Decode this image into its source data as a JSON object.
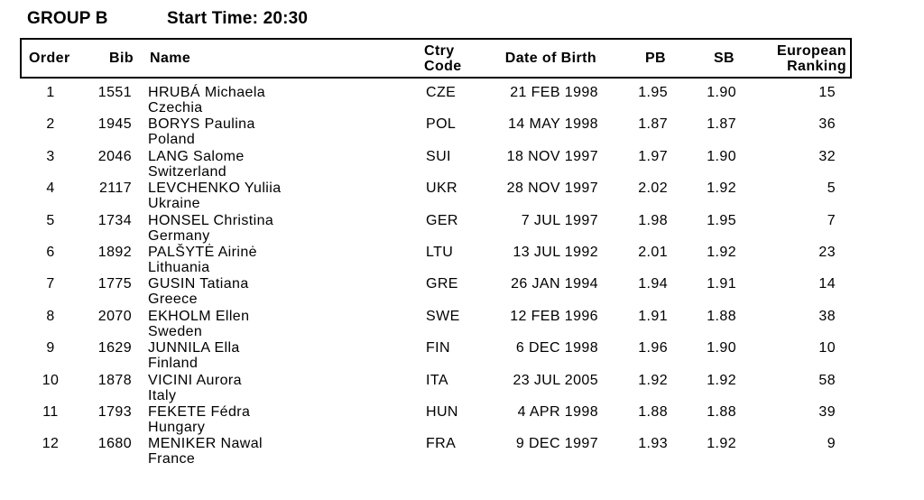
{
  "header": {
    "group_label": "GROUP B",
    "start_time_label": "Start Time: 20:30"
  },
  "colors": {
    "text": "#000000",
    "background": "#ffffff",
    "table_border": "#000000"
  },
  "table": {
    "columns": {
      "order": "Order",
      "bib": "Bib",
      "name": "Name",
      "ctry_line1": "Ctry",
      "ctry_line2": "Code",
      "dob": "Date of Birth",
      "pb": "PB",
      "sb": "SB",
      "rank_line1": "European",
      "rank_line2": "Ranking"
    },
    "rows": [
      {
        "order": "1",
        "bib": "1551",
        "name": "HRUBÁ Michaela",
        "country": "Czechia",
        "ctry": "CZE",
        "dob": "21 FEB 1998",
        "pb": "1.95",
        "sb": "1.90",
        "rank": "15"
      },
      {
        "order": "2",
        "bib": "1945",
        "name": "BORYS Paulina",
        "country": "Poland",
        "ctry": "POL",
        "dob": "14 MAY 1998",
        "pb": "1.87",
        "sb": "1.87",
        "rank": "36"
      },
      {
        "order": "3",
        "bib": "2046",
        "name": "LANG Salome",
        "country": "Switzerland",
        "ctry": "SUI",
        "dob": "18 NOV 1997",
        "pb": "1.97",
        "sb": "1.90",
        "rank": "32"
      },
      {
        "order": "4",
        "bib": "2117",
        "name": "LEVCHENKO Yuliia",
        "country": "Ukraine",
        "ctry": "UKR",
        "dob": "28 NOV 1997",
        "pb": "2.02",
        "sb": "1.92",
        "rank": "5"
      },
      {
        "order": "5",
        "bib": "1734",
        "name": "HONSEL Christina",
        "country": "Germany",
        "ctry": "GER",
        "dob": "7 JUL 1997",
        "pb": "1.98",
        "sb": "1.95",
        "rank": "7"
      },
      {
        "order": "6",
        "bib": "1892",
        "name": "PALŠYTĖ Airinė",
        "country": "Lithuania",
        "ctry": "LTU",
        "dob": "13 JUL 1992",
        "pb": "2.01",
        "sb": "1.92",
        "rank": "23"
      },
      {
        "order": "7",
        "bib": "1775",
        "name": "GUSIN Tatiana",
        "country": "Greece",
        "ctry": "GRE",
        "dob": "26 JAN 1994",
        "pb": "1.94",
        "sb": "1.91",
        "rank": "14"
      },
      {
        "order": "8",
        "bib": "2070",
        "name": "EKHOLM Ellen",
        "country": "Sweden",
        "ctry": "SWE",
        "dob": "12 FEB 1996",
        "pb": "1.91",
        "sb": "1.88",
        "rank": "38"
      },
      {
        "order": "9",
        "bib": "1629",
        "name": "JUNNILA Ella",
        "country": "Finland",
        "ctry": "FIN",
        "dob": "6 DEC 1998",
        "pb": "1.96",
        "sb": "1.90",
        "rank": "10"
      },
      {
        "order": "10",
        "bib": "1878",
        "name": "VICINI Aurora",
        "country": "Italy",
        "ctry": "ITA",
        "dob": "23 JUL 2005",
        "pb": "1.92",
        "sb": "1.92",
        "rank": "58"
      },
      {
        "order": "11",
        "bib": "1793",
        "name": "FEKETE Fédra",
        "country": "Hungary",
        "ctry": "HUN",
        "dob": "4 APR 1998",
        "pb": "1.88",
        "sb": "1.88",
        "rank": "39"
      },
      {
        "order": "12",
        "bib": "1680",
        "name": "MENIKER Nawal",
        "country": "France",
        "ctry": "FRA",
        "dob": "9 DEC 1997",
        "pb": "1.93",
        "sb": "1.92",
        "rank": "9"
      }
    ]
  }
}
